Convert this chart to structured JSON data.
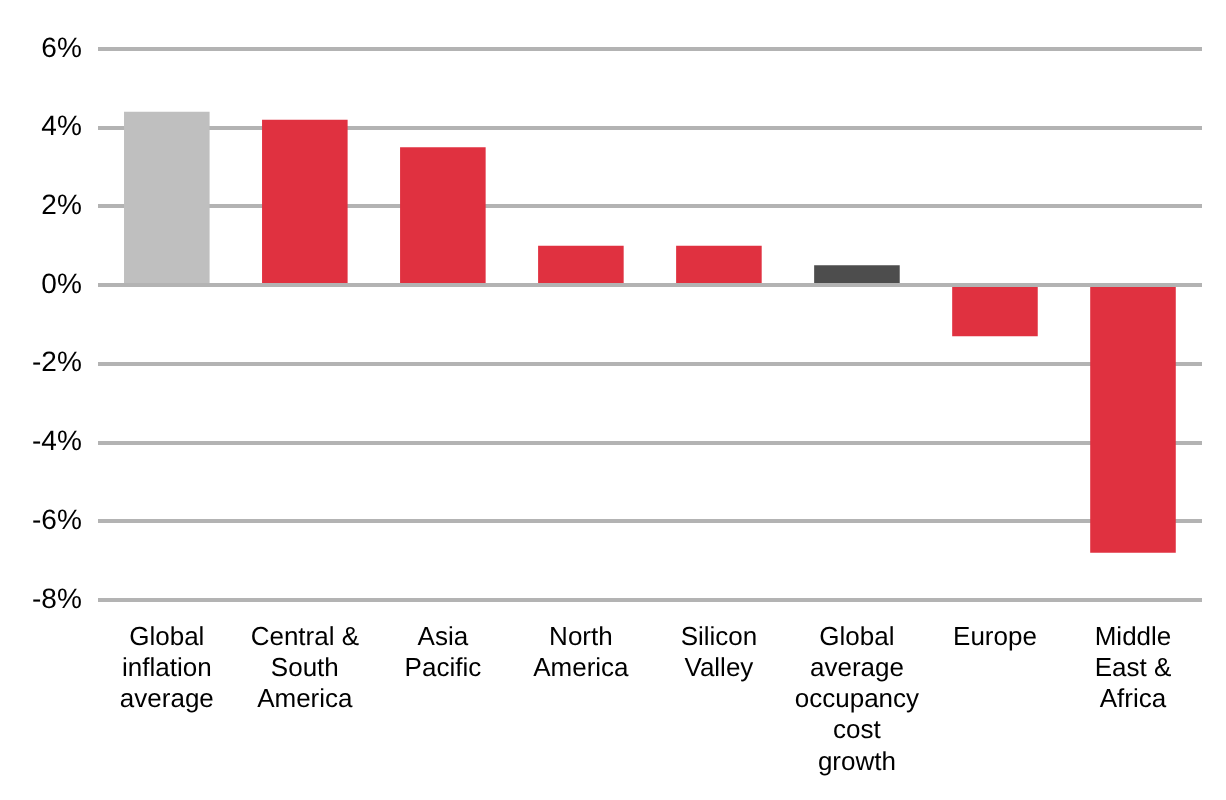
{
  "chart_data": {
    "type": "bar",
    "categories": [
      "Global inflation average",
      "Central & South America",
      "Asia Pacific",
      "North America",
      "Silicon Valley",
      "Global average occupancy cost growth",
      "Europe",
      "Middle East & Africa"
    ],
    "values": [
      4.4,
      4.2,
      3.5,
      1.0,
      1.0,
      0.5,
      -1.3,
      -6.8
    ],
    "colors": [
      "#bfbfbf",
      "#e03140",
      "#e03140",
      "#e03140",
      "#e03140",
      "#4d4d4d",
      "#e03140",
      "#e03140"
    ],
    "ylim": [
      -8,
      6
    ],
    "yticks": [
      {
        "value": -8,
        "label": "-8%"
      },
      {
        "value": -6,
        "label": "-6%"
      },
      {
        "value": -4,
        "label": "-4%"
      },
      {
        "value": -2,
        "label": "-2%"
      },
      {
        "value": 0,
        "label": "0%"
      },
      {
        "value": 2,
        "label": "2%"
      },
      {
        "value": 4,
        "label": "4%"
      },
      {
        "value": 6,
        "label": "6%"
      }
    ],
    "grid": "y"
  }
}
